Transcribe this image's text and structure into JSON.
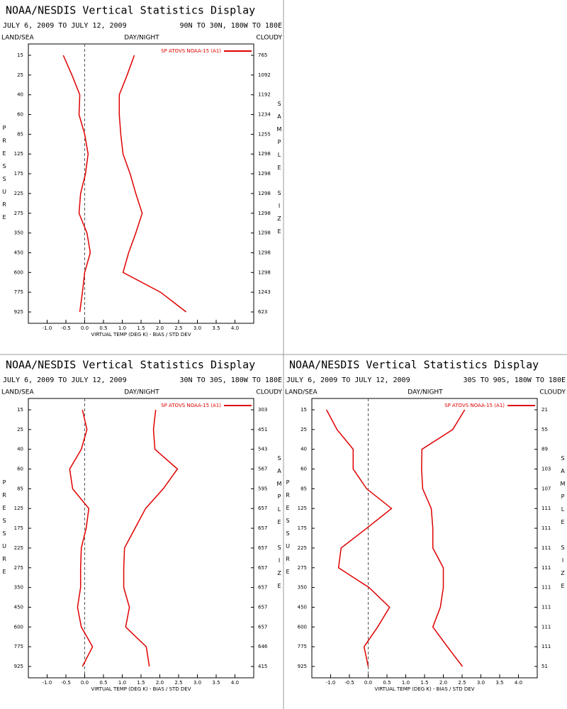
{
  "chart_data": [
    {
      "type": "line",
      "title": "NOAA/NESDIS Vertical Statistics Display",
      "date_range": "JULY 6, 2009 TO JULY 12, 2009",
      "region": "90N TO 30N, 180W TO 180E",
      "header_labels": [
        "LAND/SEA",
        "DAY/NIGHT",
        "CLOUDY"
      ],
      "y_label": "PRESSURE",
      "y2_label": "SAMPLE SIZE",
      "x_label": "VIRTUAL TEMP (DEG K) - BIAS / STD DEV",
      "categories": [
        15,
        25,
        40,
        60,
        85,
        125,
        175,
        225,
        275,
        350,
        450,
        600,
        775,
        925
      ],
      "sample_size": [
        765,
        1092,
        1192,
        1234,
        1255,
        1298,
        1298,
        1298,
        1298,
        1298,
        1298,
        1298,
        1243,
        623
      ],
      "series": [
        {
          "name": "SP ATOVS NOAA-15 (A1)",
          "color": "#e00000",
          "values": [
            -0.57,
            -0.34,
            -0.13,
            -0.15,
            0.0,
            0.09,
            0.02,
            -0.11,
            -0.15,
            0.06,
            0.15,
            0.0,
            -0.06,
            -0.13
          ]
        },
        {
          "color": "#e00000",
          "values": [
            1.32,
            1.13,
            0.92,
            0.92,
            0.96,
            1.02,
            1.21,
            1.36,
            1.53,
            1.36,
            1.17,
            1.02,
            2.02,
            2.7
          ]
        }
      ],
      "xlim": [
        -1.5,
        4.5
      ],
      "xticks": [
        {
          "value": -1,
          "label": "-1.0"
        },
        {
          "value": -0.5,
          "label": "-0.5"
        },
        {
          "value": 0,
          "label": "0.0"
        },
        {
          "value": 0.5,
          "label": "0.5"
        },
        {
          "value": 1,
          "label": "1.0"
        },
        {
          "value": 1.5,
          "label": "1.5"
        },
        {
          "value": 2,
          "label": "2.0"
        },
        {
          "value": 2.5,
          "label": "2.5"
        },
        {
          "value": 3,
          "label": "3.0"
        },
        {
          "value": 3.5,
          "label": "3.5"
        },
        {
          "value": 4,
          "label": "4.0"
        }
      ]
    },
    {
      "type": "line",
      "title": "NOAA/NESDIS Vertical Statistics Display",
      "date_range": "JULY 6, 2009 TO JULY 12, 2009",
      "region": "30N TO 30S, 180W TO 180E",
      "header_labels": [
        "LAND/SEA",
        "DAY/NIGHT",
        "CLOUDY"
      ],
      "y_label": "PRESSURE",
      "y2_label": "SAMPLE SIZE",
      "x_label": "VIRTUAL TEMP (DEG K) - BIAS / STD DEV",
      "categories": [
        15,
        25,
        40,
        60,
        85,
        125,
        175,
        225,
        275,
        350,
        450,
        600,
        775,
        925
      ],
      "sample_size": [
        303,
        451,
        543,
        567,
        595,
        657,
        657,
        657,
        657,
        657,
        657,
        657,
        646,
        415
      ],
      "series": [
        {
          "name": "SP ATOVS NOAA-15 (A1)",
          "color": "#e00000",
          "values": [
            -0.06,
            0.06,
            -0.09,
            -0.4,
            -0.32,
            0.11,
            0.04,
            -0.09,
            -0.11,
            -0.11,
            -0.19,
            -0.09,
            0.21,
            -0.06
          ]
        },
        {
          "color": "#e00000",
          "values": [
            1.89,
            1.83,
            1.87,
            2.47,
            2.09,
            1.62,
            1.34,
            1.06,
            1.04,
            1.04,
            1.19,
            1.09,
            1.64,
            1.72
          ]
        }
      ],
      "xlim": [
        -1.5,
        4.5
      ],
      "xticks": [
        {
          "value": -1,
          "label": "-1.0"
        },
        {
          "value": -0.5,
          "label": "-0.5"
        },
        {
          "value": 0,
          "label": "0.0"
        },
        {
          "value": 0.5,
          "label": "0.5"
        },
        {
          "value": 1,
          "label": "1.0"
        },
        {
          "value": 1.5,
          "label": "1.5"
        },
        {
          "value": 2,
          "label": "2.0"
        },
        {
          "value": 2.5,
          "label": "2.5"
        },
        {
          "value": 3,
          "label": "3.0"
        },
        {
          "value": 3.5,
          "label": "3.5"
        },
        {
          "value": 4,
          "label": "4.0"
        }
      ]
    },
    {
      "type": "line",
      "title": "NOAA/NESDIS Vertical Statistics Display",
      "date_range": "JULY 6, 2009 TO JULY 12, 2009",
      "region": "30S TO 90S, 180W TO 180E",
      "header_labels": [
        "LAND/SEA",
        "DAY/NIGHT",
        "CLOUDY"
      ],
      "y_label": "PRESSURE",
      "y2_label": "SAMPLE SIZE",
      "x_label": "VIRTUAL TEMP (DEG K) - BIAS / STD DEV",
      "categories": [
        15,
        25,
        40,
        60,
        85,
        125,
        175,
        225,
        275,
        350,
        450,
        600,
        775,
        925
      ],
      "sample_size": [
        21,
        55,
        89,
        103,
        107,
        111,
        111,
        111,
        111,
        111,
        111,
        111,
        111,
        51
      ],
      "series": [
        {
          "name": "SP ATOVS NOAA-15 (A1)",
          "color": "#e00000",
          "values": [
            -1.11,
            -0.83,
            -0.4,
            -0.4,
            -0.04,
            0.62,
            -0.04,
            -0.72,
            -0.79,
            0.02,
            0.57,
            0.25,
            -0.11,
            0.0
          ]
        },
        {
          "color": "#e00000",
          "values": [
            2.57,
            2.25,
            1.43,
            1.42,
            1.45,
            1.68,
            1.72,
            1.72,
            2.0,
            2.0,
            1.92,
            1.72,
            2.11,
            2.51
          ]
        }
      ],
      "xlim": [
        -1.5,
        4.5
      ],
      "xticks": [
        {
          "value": -1,
          "label": "-1.0"
        },
        {
          "value": -0.5,
          "label": "-0.5"
        },
        {
          "value": 0,
          "label": "0.0"
        },
        {
          "value": 0.5,
          "label": "0.5"
        },
        {
          "value": 1,
          "label": "1.0"
        },
        {
          "value": 1.5,
          "label": "1.5"
        },
        {
          "value": 2,
          "label": "2.0"
        },
        {
          "value": 2.5,
          "label": "2.5"
        },
        {
          "value": 3,
          "label": "3.0"
        },
        {
          "value": 3.5,
          "label": "3.5"
        },
        {
          "value": 4,
          "label": "4.0"
        }
      ]
    }
  ]
}
